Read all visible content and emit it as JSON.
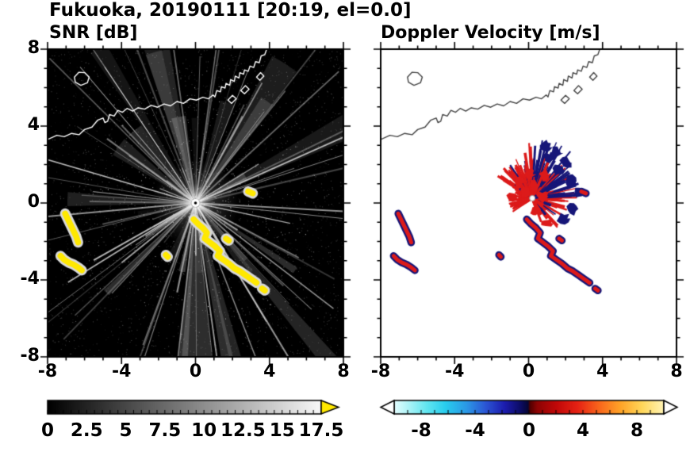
{
  "title": "Fukuoka, 20190111 [20:19, el=0.0]",
  "left_panel": {
    "title": "SNR [dB]"
  },
  "right_panel": {
    "title": "Doppler Velocity [m/s]"
  },
  "chart_data": {
    "type": "heatmap",
    "layout": "two-panel radar PPI display, shared square axes",
    "x_range": [
      -8,
      8
    ],
    "y_range": [
      -8,
      8
    ],
    "x_ticks": {
      "values": [
        -8,
        -4,
        0,
        4,
        8
      ],
      "labels": [
        "-8",
        "-4",
        "0",
        "4",
        "8"
      ]
    },
    "y_ticks": {
      "values": [
        8,
        4,
        0,
        -4,
        -8
      ],
      "labels": [
        "8",
        "4",
        "0",
        "-4",
        "-8"
      ]
    },
    "minor_tick_step": 1,
    "grid": "off",
    "radar_center": [
      0,
      0
    ],
    "coastline": {
      "main": [
        [
          -8,
          3.3
        ],
        [
          -7.5,
          3.52
        ],
        [
          -7.1,
          3.45
        ],
        [
          -6.7,
          3.62
        ],
        [
          -6.3,
          3.55
        ],
        [
          -6.0,
          3.82
        ],
        [
          -5.6,
          3.95
        ],
        [
          -5.3,
          4.3
        ],
        [
          -5.0,
          4.42
        ],
        [
          -4.9,
          4.18
        ],
        [
          -4.75,
          4.25
        ],
        [
          -4.65,
          4.6
        ],
        [
          -4.4,
          4.52
        ],
        [
          -4.2,
          4.82
        ],
        [
          -3.95,
          4.72
        ],
        [
          -3.7,
          4.92
        ],
        [
          -3.4,
          4.78
        ],
        [
          -3.1,
          4.95
        ],
        [
          -2.75,
          4.88
        ],
        [
          -2.4,
          5.08
        ],
        [
          -2.05,
          4.98
        ],
        [
          -1.7,
          5.15
        ],
        [
          -1.35,
          5.05
        ],
        [
          -1.0,
          5.28
        ],
        [
          -0.65,
          5.18
        ],
        [
          -0.3,
          5.42
        ],
        [
          0.05,
          5.35
        ],
        [
          0.4,
          5.5
        ],
        [
          0.7,
          5.42
        ],
        [
          0.95,
          5.62
        ],
        [
          1.05,
          5.52
        ],
        [
          1.15,
          5.85
        ],
        [
          1.35,
          5.78
        ],
        [
          1.4,
          6.05
        ],
        [
          1.6,
          5.98
        ],
        [
          1.65,
          6.22
        ],
        [
          1.85,
          6.12
        ],
        [
          1.9,
          6.42
        ],
        [
          2.1,
          6.32
        ],
        [
          2.15,
          6.6
        ],
        [
          2.35,
          6.5
        ],
        [
          2.4,
          6.78
        ],
        [
          2.6,
          6.7
        ],
        [
          2.65,
          6.92
        ],
        [
          2.85,
          6.85
        ],
        [
          2.95,
          7.12
        ],
        [
          3.15,
          7.05
        ],
        [
          3.25,
          7.35
        ],
        [
          3.45,
          7.3
        ],
        [
          3.55,
          7.65
        ],
        [
          3.75,
          7.72
        ],
        [
          3.85,
          8.0
        ]
      ],
      "island": [
        [
          -6.55,
          6.55
        ],
        [
          -6.3,
          6.8
        ],
        [
          -6.0,
          6.78
        ],
        [
          -5.75,
          6.55
        ],
        [
          -5.85,
          6.25
        ],
        [
          -6.2,
          6.12
        ],
        [
          -6.5,
          6.28
        ],
        [
          -6.55,
          6.55
        ]
      ],
      "piers": [
        [
          [
            1.75,
            5.35
          ],
          [
            2.0,
            5.6
          ],
          [
            2.2,
            5.42
          ],
          [
            1.95,
            5.18
          ],
          [
            1.75,
            5.35
          ]
        ],
        [
          [
            2.45,
            5.85
          ],
          [
            2.7,
            6.1
          ],
          [
            2.9,
            5.92
          ],
          [
            2.65,
            5.68
          ],
          [
            2.45,
            5.85
          ]
        ],
        [
          [
            3.3,
            6.55
          ],
          [
            3.52,
            6.78
          ],
          [
            3.7,
            6.6
          ],
          [
            3.48,
            6.38
          ],
          [
            3.3,
            6.55
          ]
        ]
      ]
    },
    "clutter_chains": [
      [
        [
          -7.05,
          -0.55
        ],
        [
          -6.9,
          -0.85
        ],
        [
          -6.75,
          -1.15
        ],
        [
          -6.6,
          -1.45
        ],
        [
          -6.45,
          -1.75
        ],
        [
          -6.35,
          -2.05
        ]
      ],
      [
        [
          -7.3,
          -2.75
        ],
        [
          -7.1,
          -2.95
        ],
        [
          -6.85,
          -3.1
        ],
        [
          -6.6,
          -3.2
        ],
        [
          -6.35,
          -3.35
        ],
        [
          -6.15,
          -3.5
        ]
      ],
      [
        [
          -0.1,
          -0.85
        ],
        [
          0.15,
          -1.1
        ],
        [
          0.4,
          -1.3
        ],
        [
          0.62,
          -1.55
        ],
        [
          0.5,
          -1.85
        ],
        [
          0.78,
          -2.05
        ],
        [
          1.05,
          -2.25
        ],
        [
          1.32,
          -2.5
        ],
        [
          1.2,
          -2.75
        ],
        [
          1.5,
          -2.95
        ],
        [
          1.8,
          -3.15
        ],
        [
          2.1,
          -3.4
        ],
        [
          2.4,
          -3.55
        ],
        [
          2.7,
          -3.75
        ],
        [
          3.0,
          -3.95
        ],
        [
          3.3,
          -4.15
        ]
      ],
      [
        [
          3.6,
          -4.45
        ],
        [
          3.75,
          -4.55
        ]
      ],
      [
        [
          1.65,
          -1.85
        ],
        [
          1.8,
          -1.95
        ]
      ],
      [
        [
          2.85,
          0.6
        ],
        [
          3.1,
          0.5
        ]
      ],
      [
        [
          -1.6,
          -2.7
        ],
        [
          -1.5,
          -2.8
        ]
      ]
    ],
    "snr_panel": {
      "background": "#000000",
      "ray_seed": 7,
      "ray_count": 85,
      "wedge_count": 26,
      "speckle_count": 3200,
      "clutter_color": "#ffe800",
      "clutter_halo": "#d8d8d8",
      "colorbar": {
        "min": 0,
        "max": 17.5,
        "label_values": [
          0,
          2.5,
          5,
          7.5,
          10,
          12.5,
          15,
          17.5
        ],
        "labels": [
          "0",
          "2.5",
          "5",
          "7.5",
          "10",
          "12.5",
          "15",
          "17.5"
        ],
        "minor_step": 0.5,
        "gradient": [
          [
            0,
            "#000000"
          ],
          [
            1,
            "#f8f8f8"
          ]
        ],
        "overflow_color": "#ffe800"
      }
    },
    "doppler_panel": {
      "background": "#ffffff",
      "seed": 11,
      "spike_count": 430,
      "negative_color": "#161678",
      "positive_color": "#dc1a1a",
      "blob_center": [
        0.2,
        0.25
      ],
      "navy_blobs": [
        [
          1.6,
          1.7
        ],
        [
          2.3,
          1.1
        ],
        [
          1.1,
          2.3
        ],
        [
          2.7,
          0.5
        ],
        [
          2.0,
          2.1
        ],
        [
          1.5,
          2.6
        ],
        [
          0.9,
          2.9
        ],
        [
          2.4,
          -0.3
        ],
        [
          1.9,
          -0.8
        ]
      ],
      "red_blobs": [
        [
          0.3,
          0.9
        ],
        [
          0.7,
          0.35
        ],
        [
          -0.2,
          0.6
        ],
        [
          0.35,
          -0.45
        ],
        [
          1.0,
          -1.05
        ],
        [
          0.05,
          1.5
        ],
        [
          -0.5,
          1.1
        ],
        [
          0.9,
          1.4
        ],
        [
          -0.9,
          0.3
        ]
      ],
      "colorbar": {
        "min": -10,
        "max": 10,
        "label_values": [
          -8,
          -4,
          0,
          4,
          8
        ],
        "labels": [
          "-8",
          "-4",
          "0",
          "4",
          "8"
        ],
        "minor_step": 1,
        "stops": [
          [
            0,
            "#e4feff"
          ],
          [
            0.05,
            "#b0f4f8"
          ],
          [
            0.12,
            "#62e6f0"
          ],
          [
            0.19,
            "#28cdee"
          ],
          [
            0.27,
            "#2b97e6"
          ],
          [
            0.34,
            "#2b55d4"
          ],
          [
            0.41,
            "#1c1cae"
          ],
          [
            0.47,
            "#0c0c62"
          ],
          [
            0.497,
            "#060634"
          ],
          [
            0.503,
            "#500000"
          ],
          [
            0.53,
            "#8c0404"
          ],
          [
            0.6,
            "#c00808"
          ],
          [
            0.68,
            "#e62214"
          ],
          [
            0.76,
            "#f9661c"
          ],
          [
            0.84,
            "#ffa428"
          ],
          [
            0.92,
            "#ffd75a"
          ],
          [
            1,
            "#fff3b4"
          ]
        ],
        "arrow_color": "#ffffff"
      }
    }
  }
}
